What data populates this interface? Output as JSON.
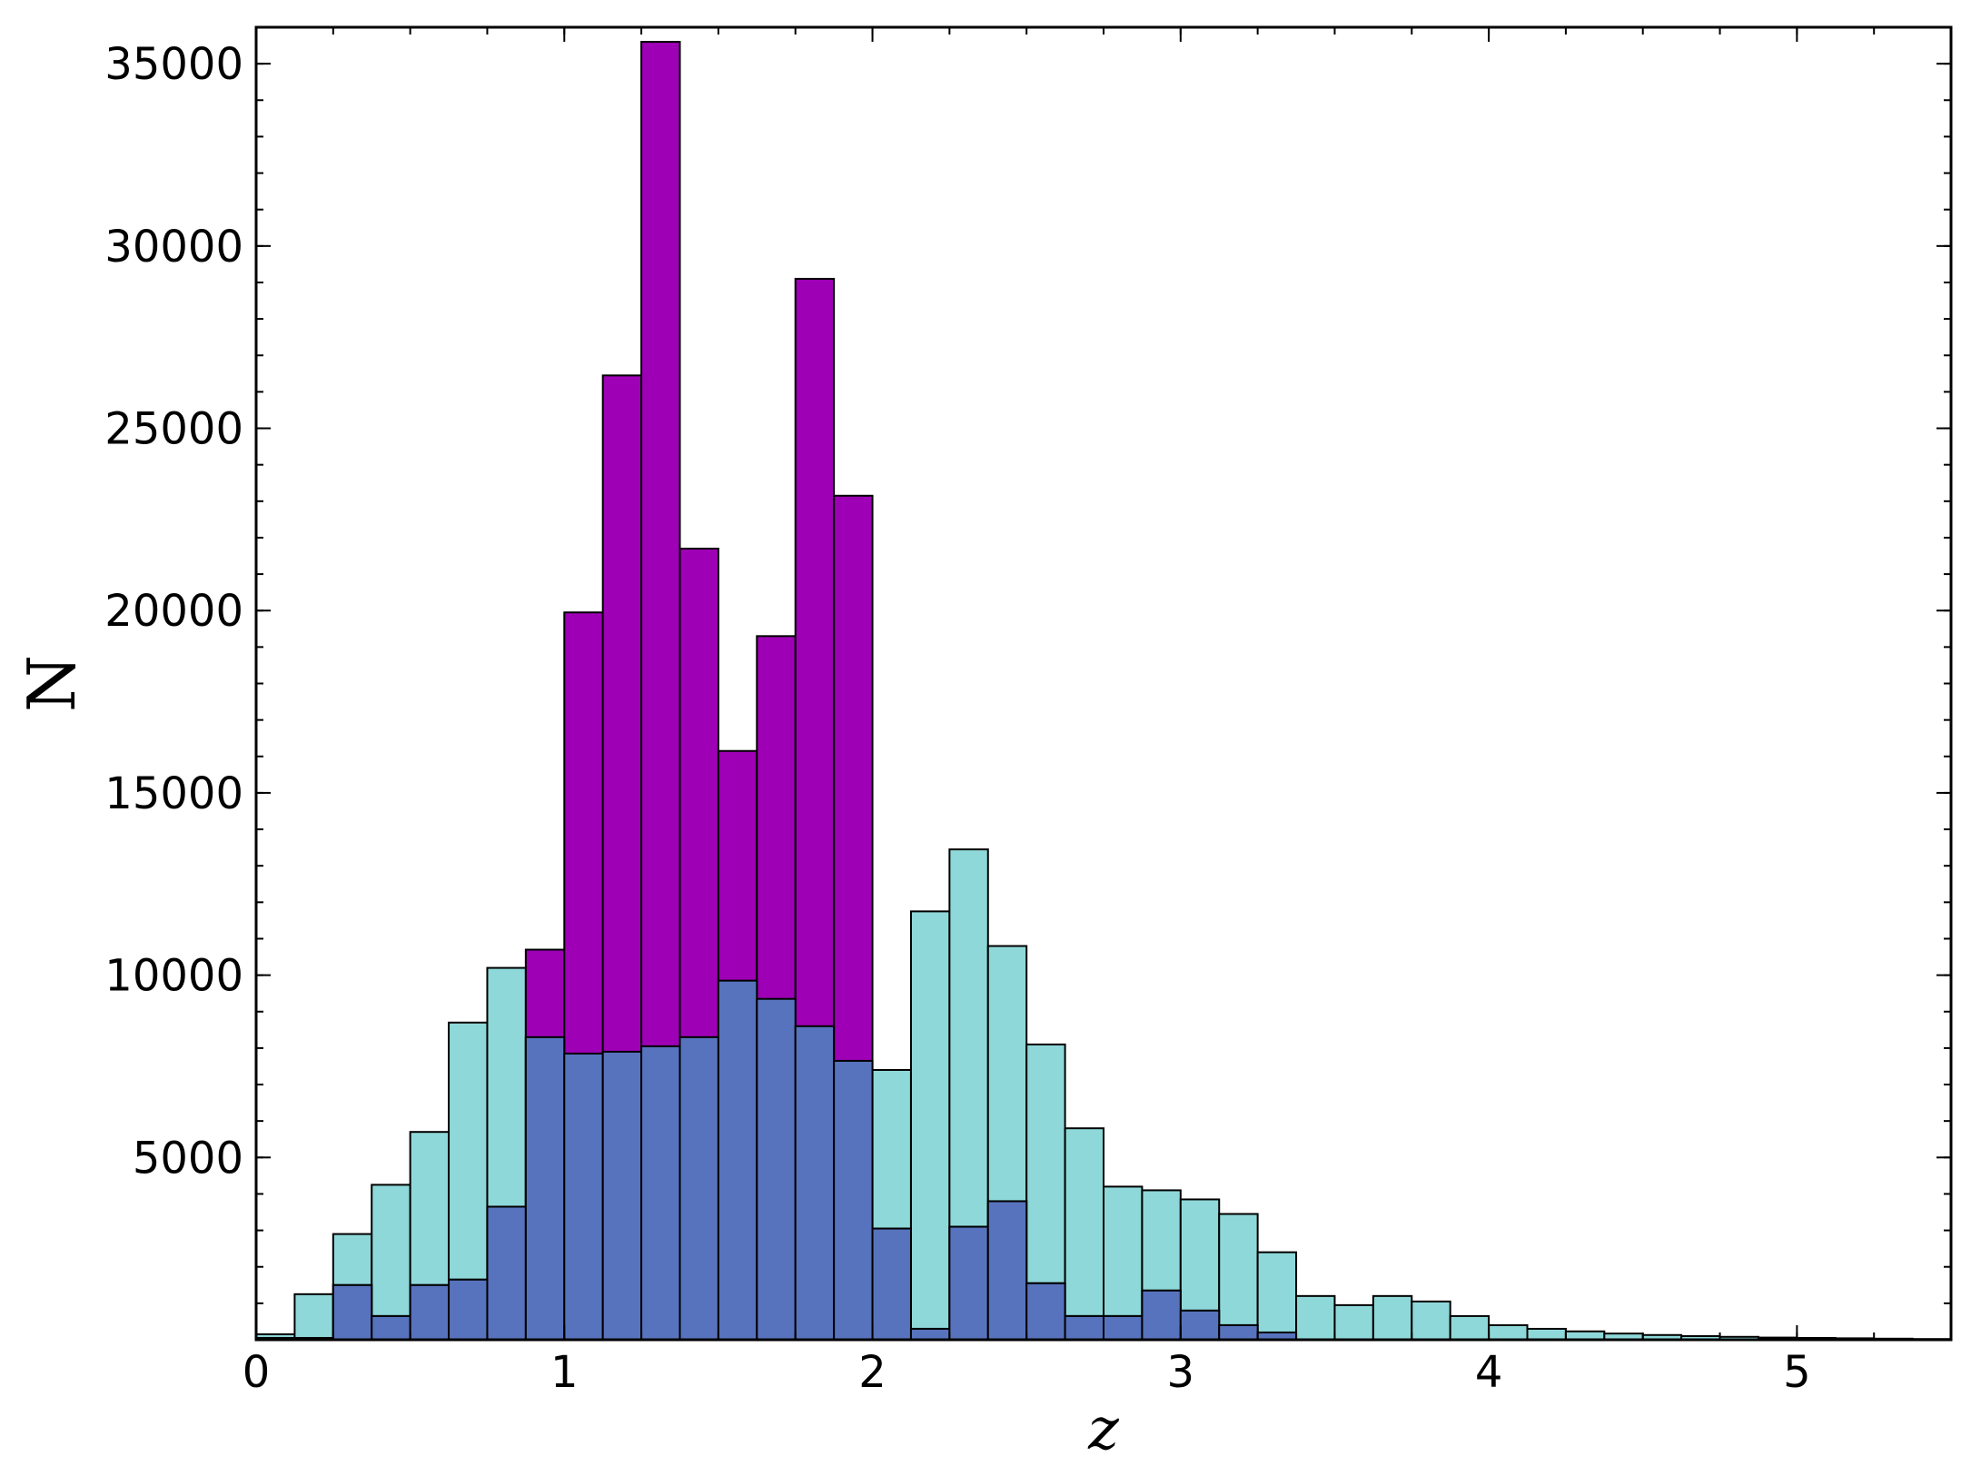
{
  "chart_data": {
    "type": "bar",
    "xlabel": "z",
    "ylabel": "N",
    "xlim": [
      0,
      5.5
    ],
    "ylim": [
      0,
      36000
    ],
    "bin_width": 0.125,
    "x_ticks": [
      0,
      1,
      2,
      3,
      4,
      5
    ],
    "y_ticks": [
      5000,
      10000,
      15000,
      20000,
      25000,
      30000,
      35000
    ],
    "x_minor_step": 0.25,
    "y_minor_step": 1000,
    "grid": false,
    "colors": {
      "cyan": "#8fd8d9",
      "magenta": "#9e00b5",
      "overlap": "#5873bd",
      "edge": "#000000"
    },
    "series": [
      {
        "bin_starts": [
          0,
          0.125,
          0.25,
          0.375,
          0.5,
          0.625,
          0.75,
          0.875,
          1.0,
          1.125,
          1.25,
          1.375,
          1.5,
          1.625,
          1.75,
          1.875,
          2.0,
          2.125,
          2.25,
          2.375,
          2.5,
          2.625,
          2.75,
          2.875,
          3.0,
          3.125,
          3.25,
          3.375,
          3.5,
          3.625,
          3.75,
          3.875,
          4.0,
          4.125,
          4.25,
          4.375,
          4.5,
          4.625,
          4.75,
          4.875,
          5.0,
          5.125,
          5.25,
          5.375
        ],
        "values": [
          150,
          1250,
          2900,
          4250,
          5700,
          8700,
          10200,
          8300,
          7850,
          7900,
          8050,
          8300,
          9850,
          9350,
          8600,
          7650,
          7400,
          11750,
          13450,
          10800,
          8100,
          5800,
          4200,
          4100,
          3850,
          3450,
          2400,
          1200,
          950,
          1200,
          1050,
          650,
          400,
          300,
          230,
          170,
          130,
          100,
          80,
          60,
          50,
          40,
          30,
          20
        ]
      },
      {
        "bin_starts": [
          0,
          0.125,
          0.25,
          0.375,
          0.5,
          0.625,
          0.75,
          0.875,
          1.0,
          1.125,
          1.25,
          1.375,
          1.5,
          1.625,
          1.75,
          1.875,
          2.0,
          2.125,
          2.25,
          2.375,
          2.5,
          2.625,
          2.75,
          2.875,
          3.0,
          3.125,
          3.25
        ],
        "values": [
          50,
          50,
          1500,
          650,
          1500,
          1650,
          3650,
          10700,
          19950,
          26450,
          35600,
          21700,
          16150,
          19300,
          29100,
          23150,
          3050,
          300,
          3100,
          3800,
          1550,
          650,
          650,
          1350,
          800,
          400,
          200
        ]
      }
    ]
  }
}
